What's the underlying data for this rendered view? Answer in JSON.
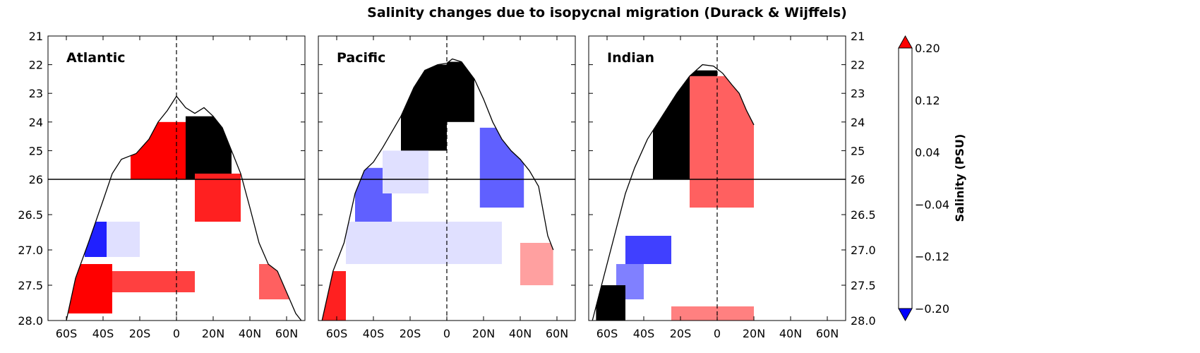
{
  "title": "Salinity changes due to isopycnal migration (Durack & Wijffels)",
  "colorbar": {
    "label": "Salinity (PSU)",
    "tick_labels": [
      "0.20",
      "0.12",
      "0.04",
      "−0.04",
      "−0.12",
      "−0.20"
    ],
    "levels": [
      -0.2,
      -0.18,
      -0.16,
      -0.14,
      -0.12,
      -0.1,
      -0.08,
      -0.06,
      -0.04,
      -0.02,
      0.02,
      0.04,
      0.06,
      0.08,
      0.1,
      0.12,
      0.14,
      0.16,
      0.18,
      0.2
    ],
    "colors": [
      "#0000ff",
      "#2020ff",
      "#4040ff",
      "#6060ff",
      "#8080ff",
      "#a0a0ff",
      "#c0c0ff",
      "#e0e0ff",
      "#ffffff",
      "#ffe0e0",
      "#ffc0c0",
      "#ffa0a0",
      "#ff8080",
      "#ff6060",
      "#ff4040",
      "#ff2020",
      "#ff0000"
    ]
  },
  "chart_data": {
    "type": "heatmap",
    "x_tick_labels": [
      "60S",
      "40S",
      "20S",
      "0",
      "20N",
      "40N",
      "60N"
    ],
    "x_tick_values": [
      -60,
      -40,
      -20,
      0,
      20,
      40,
      60
    ],
    "xlim": [
      -70,
      70
    ],
    "y_tick_labels_upper": [
      "21",
      "22",
      "23",
      "24",
      "25",
      "26"
    ],
    "y_tick_values_upper": [
      21,
      22,
      23,
      24,
      25,
      26
    ],
    "y_tick_labels_lower": [
      "26",
      "26.5",
      "27.0",
      "27.5",
      "28.0"
    ],
    "y_tick_values_lower": [
      26,
      26.5,
      27.0,
      27.5,
      28.0
    ],
    "ylim": [
      21,
      28
    ],
    "vlines": [
      0
    ],
    "hlines": [
      26
    ],
    "panels": [
      {
        "name": "Atlantic",
        "outcrop_boundary": [
          [
            -60,
            28.0
          ],
          [
            -55,
            27.4
          ],
          [
            -48,
            26.9
          ],
          [
            -40,
            26.3
          ],
          [
            -35,
            25.8
          ],
          [
            -30,
            25.3
          ],
          [
            -22,
            25.1
          ],
          [
            -15,
            24.6
          ],
          [
            -10,
            24.0
          ],
          [
            -5,
            23.6
          ],
          [
            0,
            23.1
          ],
          [
            5,
            23.5
          ],
          [
            10,
            23.7
          ],
          [
            15,
            23.5
          ],
          [
            20,
            23.8
          ],
          [
            25,
            24.2
          ],
          [
            30,
            25.0
          ],
          [
            35,
            25.8
          ],
          [
            40,
            26.4
          ],
          [
            45,
            26.9
          ],
          [
            50,
            27.2
          ],
          [
            55,
            27.3
          ],
          [
            60,
            27.6
          ],
          [
            65,
            27.9
          ],
          [
            68,
            28.0
          ]
        ],
        "anomaly_patches": [
          {
            "lat": [
              -25,
              5
            ],
            "sigma": [
              24.0,
              26.0
            ],
            "value": 0.2
          },
          {
            "lat": [
              5,
              30
            ],
            "sigma": [
              23.8,
              26.0
            ],
            "value": 0.18
          },
          {
            "lat": [
              10,
              35
            ],
            "sigma": [
              25.8,
              26.6
            ],
            "value": 0.12
          },
          {
            "lat": [
              -50,
              -38
            ],
            "sigma": [
              26.6,
              27.1
            ],
            "value": -0.18
          },
          {
            "lat": [
              -38,
              -20
            ],
            "sigma": [
              26.6,
              27.1
            ],
            "value": -0.06
          },
          {
            "lat": [
              -60,
              -35
            ],
            "sigma": [
              27.2,
              27.9
            ],
            "value": 0.14
          },
          {
            "lat": [
              -35,
              10
            ],
            "sigma": [
              27.3,
              27.6
            ],
            "value": 0.1
          },
          {
            "lat": [
              10,
              50
            ],
            "sigma": [
              26.8,
              27.8
            ],
            "value": -0.04
          },
          {
            "lat": [
              45,
              65
            ],
            "sigma": [
              27.2,
              27.7
            ],
            "value": 0.08
          }
        ]
      },
      {
        "name": "Pacific",
        "outcrop_boundary": [
          [
            -68,
            28.0
          ],
          [
            -62,
            27.3
          ],
          [
            -56,
            26.9
          ],
          [
            -50,
            26.2
          ],
          [
            -45,
            25.7
          ],
          [
            -40,
            25.4
          ],
          [
            -35,
            24.9
          ],
          [
            -25,
            23.8
          ],
          [
            -18,
            22.8
          ],
          [
            -12,
            22.2
          ],
          [
            -5,
            22.0
          ],
          [
            0,
            21.95
          ],
          [
            3,
            21.8
          ],
          [
            8,
            21.9
          ],
          [
            15,
            22.5
          ],
          [
            20,
            23.2
          ],
          [
            25,
            24.0
          ],
          [
            30,
            24.6
          ],
          [
            35,
            25.0
          ],
          [
            40,
            25.3
          ],
          [
            45,
            25.7
          ],
          [
            50,
            26.1
          ],
          [
            55,
            26.8
          ],
          [
            58,
            27.0
          ]
        ],
        "anomaly_patches": [
          {
            "lat": [
              -25,
              0
            ],
            "sigma": [
              22.0,
              25.0
            ],
            "value": 0.18
          },
          {
            "lat": [
              0,
              15
            ],
            "sigma": [
              21.9,
              24.0
            ],
            "value": 0.16
          },
          {
            "lat": [
              -50,
              -30
            ],
            "sigma": [
              25.6,
              26.6
            ],
            "value": -0.14
          },
          {
            "lat": [
              -35,
              -10
            ],
            "sigma": [
              25.0,
              26.2
            ],
            "value": -0.06
          },
          {
            "lat": [
              18,
              42
            ],
            "sigma": [
              24.2,
              26.4
            ],
            "value": -0.14
          },
          {
            "lat": [
              -55,
              30
            ],
            "sigma": [
              26.6,
              27.2
            ],
            "value": -0.06
          },
          {
            "lat": [
              -70,
              -55
            ],
            "sigma": [
              27.3,
              28.0
            ],
            "value": 0.12
          },
          {
            "lat": [
              40,
              58
            ],
            "sigma": [
              26.9,
              27.5
            ],
            "value": 0.04
          }
        ]
      },
      {
        "name": "Indian",
        "outcrop_boundary": [
          [
            -68,
            28.0
          ],
          [
            -62,
            27.4
          ],
          [
            -56,
            26.8
          ],
          [
            -50,
            26.2
          ],
          [
            -45,
            25.6
          ],
          [
            -38,
            24.6
          ],
          [
            -30,
            23.8
          ],
          [
            -22,
            23.0
          ],
          [
            -15,
            22.4
          ],
          [
            -8,
            22.0
          ],
          [
            -2,
            22.05
          ],
          [
            3,
            22.3
          ],
          [
            8,
            22.7
          ],
          [
            12,
            23.0
          ],
          [
            16,
            23.6
          ],
          [
            20,
            24.1
          ]
        ],
        "anomaly_patches": [
          {
            "lat": [
              -35,
              0
            ],
            "sigma": [
              22.2,
              26.0
            ],
            "value": 0.16
          },
          {
            "lat": [
              -15,
              20
            ],
            "sigma": [
              22.4,
              26.4
            ],
            "value": 0.08
          },
          {
            "lat": [
              -50,
              -25
            ],
            "sigma": [
              26.8,
              27.2
            ],
            "value": -0.16
          },
          {
            "lat": [
              -55,
              -40
            ],
            "sigma": [
              27.2,
              27.7
            ],
            "value": -0.12
          },
          {
            "lat": [
              -66,
              -50
            ],
            "sigma": [
              27.5,
              28.0
            ],
            "value": 0.16
          },
          {
            "lat": [
              -25,
              20
            ],
            "sigma": [
              27.8,
              28.0
            ],
            "value": 0.06
          }
        ]
      }
    ]
  }
}
